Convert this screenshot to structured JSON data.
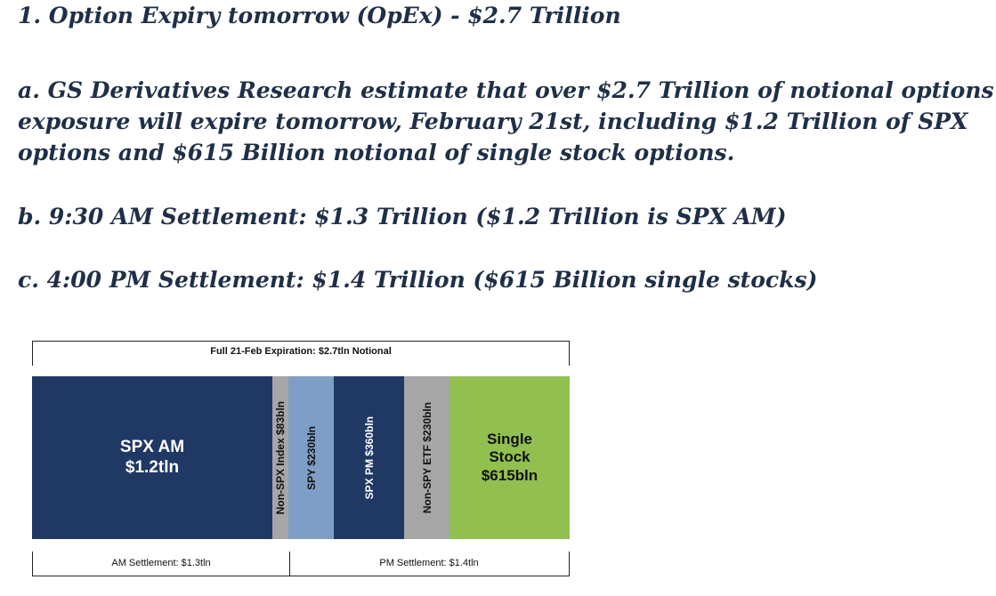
{
  "heading": "1. Option Expiry tomorrow (OpEx) - $2.7 Trillion",
  "point_a": {
    "line1": "a. GS Derivatives Research estimate that over $2.7 Trillion of notional options",
    "line2": "exposure will expire tomorrow, February 21st, including $1.2 Trillion of SPX",
    "line3": "options and $615 Billion notional of single stock options."
  },
  "point_b": "b. 9:30 AM Settlement: $1.3 Trillion ($1.2 Trillion is SPX AM)",
  "point_c": "c. 4:00 PM Settlement: $1.4 Trillion ($615 Billion single stocks)",
  "figure": {
    "top_label": "Full 21-Feb Expiration: $2.7tln Notional",
    "segments": [
      {
        "label_line1": "SPX AM",
        "label_line2": "$1.2tln",
        "color": "#1f3864"
      },
      {
        "label": "Non-SPX Index $83bln",
        "color": "#a6a6a6"
      },
      {
        "label": "SPY $230bln",
        "color": "#7f9ec7"
      },
      {
        "label": "SPX PM $360bln",
        "color": "#1f3864"
      },
      {
        "label": "Non-SPY ETF $230bln",
        "color": "#a6a6a6"
      },
      {
        "label_line1": "Single",
        "label_line2": "Stock",
        "label_line3": "$615bln",
        "color": "#92c050"
      }
    ],
    "am_settlement": "AM Settlement: $1.3tln",
    "pm_settlement": "PM Settlement: $1.4tln"
  }
}
